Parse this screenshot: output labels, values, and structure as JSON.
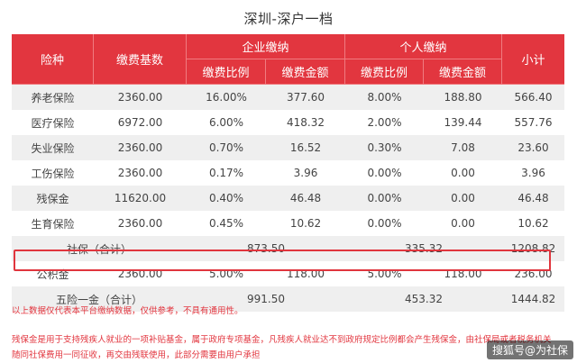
{
  "title": "深圳-深户一档",
  "header": {
    "insurance_type": "险种",
    "base": "缴费基数",
    "employer": "企业缴纳",
    "personal": "个人缴纳",
    "subtotal": "小计",
    "employer_rate": "缴费比例",
    "employer_amount": "缴费金额",
    "personal_rate": "缴费比例",
    "personal_amount": "缴费金额"
  },
  "rows": [
    {
      "name": "养老保险",
      "base": "2360.00",
      "e_rate": "16.00%",
      "e_amt": "377.60",
      "p_rate": "8.00%",
      "p_amt": "188.80",
      "subtotal": "566.40"
    },
    {
      "name": "医疗保险",
      "base": "6972.00",
      "e_rate": "6.00%",
      "e_amt": "418.32",
      "p_rate": "2.00%",
      "p_amt": "139.44",
      "subtotal": "557.76"
    },
    {
      "name": "失业保险",
      "base": "2360.00",
      "e_rate": "0.70%",
      "e_amt": "16.52",
      "p_rate": "0.30%",
      "p_amt": "7.08",
      "subtotal": "23.60"
    },
    {
      "name": "工伤保险",
      "base": "2360.00",
      "e_rate": "0.17%",
      "e_amt": "3.96",
      "p_rate": "0.00%",
      "p_amt": "0.00",
      "subtotal": "3.96"
    },
    {
      "name": "残保金",
      "base": "11620.00",
      "e_rate": "0.40%",
      "e_amt": "46.48",
      "p_rate": "0.00%",
      "p_amt": "0.00",
      "subtotal": "46.48"
    },
    {
      "name": "生育保险",
      "base": "2360.00",
      "e_rate": "0.45%",
      "e_amt": "10.62",
      "p_rate": "0.00%",
      "p_amt": "0.00",
      "subtotal": "10.62"
    }
  ],
  "social_total": {
    "label": "社保（合计）",
    "employer": "873.50",
    "personal": "335.32",
    "subtotal": "1208.82"
  },
  "housing_fund": {
    "name": "公积金",
    "base": "2360.00",
    "e_rate": "5.00%",
    "e_amt": "118.00",
    "p_rate": "5.00%",
    "p_amt": "118.00",
    "subtotal": "236.00"
  },
  "grand_total": {
    "label": "五险一金（合计）",
    "employer": "991.50",
    "personal": "453.32",
    "subtotal": "1444.82"
  },
  "notes": {
    "disclaimer": "以上数据仅代表本平台缴纳数据，仅供参考，不具有通用性。",
    "line1": "残保金是用于支持残疾人就业的一项补贴基金，属于政府专项基金，凡残疾人就业达不到政府规定比例都会产生残保金，由社保局或者税务机关",
    "line2": "随同社保费用一同征收，再交由残联使用，此部分需要由用户承担"
  },
  "watermark": "搜狐号@为社保"
}
